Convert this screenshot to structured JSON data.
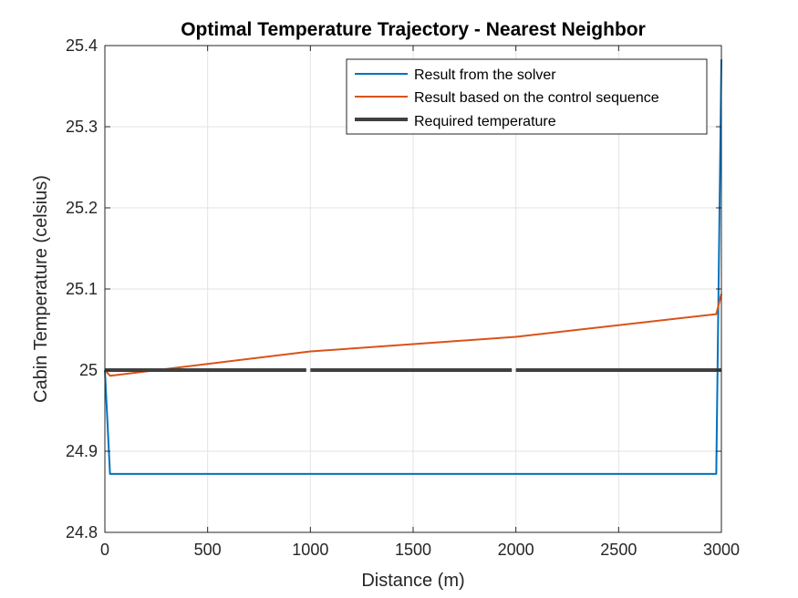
{
  "chart_data": {
    "type": "line",
    "title": "Optimal Temperature Trajectory - Nearest Neighbor",
    "xlabel": "Distance (m)",
    "ylabel": "Cabin Temperature (celsius)",
    "xlim": [
      0,
      3000
    ],
    "ylim": [
      24.8,
      25.4
    ],
    "x_ticks": [
      0,
      500,
      1000,
      1500,
      2000,
      2500,
      3000
    ],
    "y_ticks": [
      24.8,
      24.9,
      25.0,
      25.1,
      25.2,
      25.3,
      25.4
    ],
    "x_tick_labels": [
      "0",
      "500",
      "1000",
      "1500",
      "2000",
      "2500",
      "3000"
    ],
    "y_tick_labels": [
      "24.8",
      "24.9",
      "25",
      "25.1",
      "25.2",
      "25.3",
      "25.4"
    ],
    "grid": true,
    "legend_position": "top-right",
    "series": [
      {
        "name": "Result from the solver",
        "color": "#0072BD",
        "line_width": 2,
        "x": [
          0,
          25,
          2975,
          3000
        ],
        "y": [
          25.0,
          24.872,
          24.872,
          25.383
        ]
      },
      {
        "name": "Result based on the control sequence",
        "color": "#D95319",
        "line_width": 2,
        "x": [
          0,
          25,
          1000,
          2000,
          2975,
          3000
        ],
        "y": [
          25.0,
          24.993,
          25.023,
          25.041,
          25.069,
          25.094
        ]
      },
      {
        "name": "Required temperature",
        "color": "#404040",
        "line_width": 4,
        "segments": [
          {
            "x": [
              0,
              980
            ],
            "y": [
              25.0,
              25.0
            ]
          },
          {
            "x": [
              1000,
              1980
            ],
            "y": [
              25.0,
              25.0
            ]
          },
          {
            "x": [
              2000,
              3000
            ],
            "y": [
              25.0,
              25.0
            ]
          }
        ]
      }
    ]
  }
}
